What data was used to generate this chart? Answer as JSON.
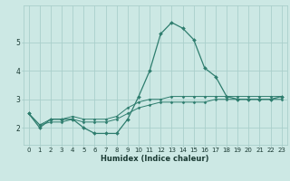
{
  "xlabel": "Humidex (Indice chaleur)",
  "x": [
    0,
    1,
    2,
    3,
    4,
    5,
    6,
    7,
    8,
    9,
    10,
    11,
    12,
    13,
    14,
    15,
    16,
    17,
    18,
    19,
    20,
    21,
    22,
    23
  ],
  "line1": [
    2.5,
    2.0,
    2.3,
    2.3,
    2.3,
    2.0,
    1.8,
    1.8,
    1.8,
    2.3,
    3.1,
    4.0,
    5.3,
    5.7,
    5.5,
    5.1,
    4.1,
    3.8,
    3.1,
    3.0,
    3.0,
    3.0,
    3.0,
    3.1
  ],
  "line2": [
    2.5,
    2.1,
    2.3,
    2.3,
    2.4,
    2.3,
    2.3,
    2.3,
    2.4,
    2.7,
    2.9,
    3.0,
    3.0,
    3.1,
    3.1,
    3.1,
    3.1,
    3.1,
    3.1,
    3.1,
    3.1,
    3.1,
    3.1,
    3.1
  ],
  "line3": [
    2.5,
    2.1,
    2.2,
    2.2,
    2.3,
    2.2,
    2.2,
    2.2,
    2.3,
    2.5,
    2.7,
    2.8,
    2.9,
    2.9,
    2.9,
    2.9,
    2.9,
    3.0,
    3.0,
    3.0,
    3.0,
    3.0,
    3.0,
    3.0
  ],
  "line_color": "#2e7d6e",
  "bg_color": "#cce8e4",
  "grid_color": "#aacfcb",
  "ylim": [
    1.4,
    6.3
  ],
  "xlim": [
    -0.5,
    23.5
  ],
  "yticks": [
    2,
    3,
    4,
    5
  ],
  "xticks": [
    0,
    1,
    2,
    3,
    4,
    5,
    6,
    7,
    8,
    9,
    10,
    11,
    12,
    13,
    14,
    15,
    16,
    17,
    18,
    19,
    20,
    21,
    22,
    23
  ],
  "tick_fontsize": 5.0,
  "xlabel_fontsize": 6.0
}
